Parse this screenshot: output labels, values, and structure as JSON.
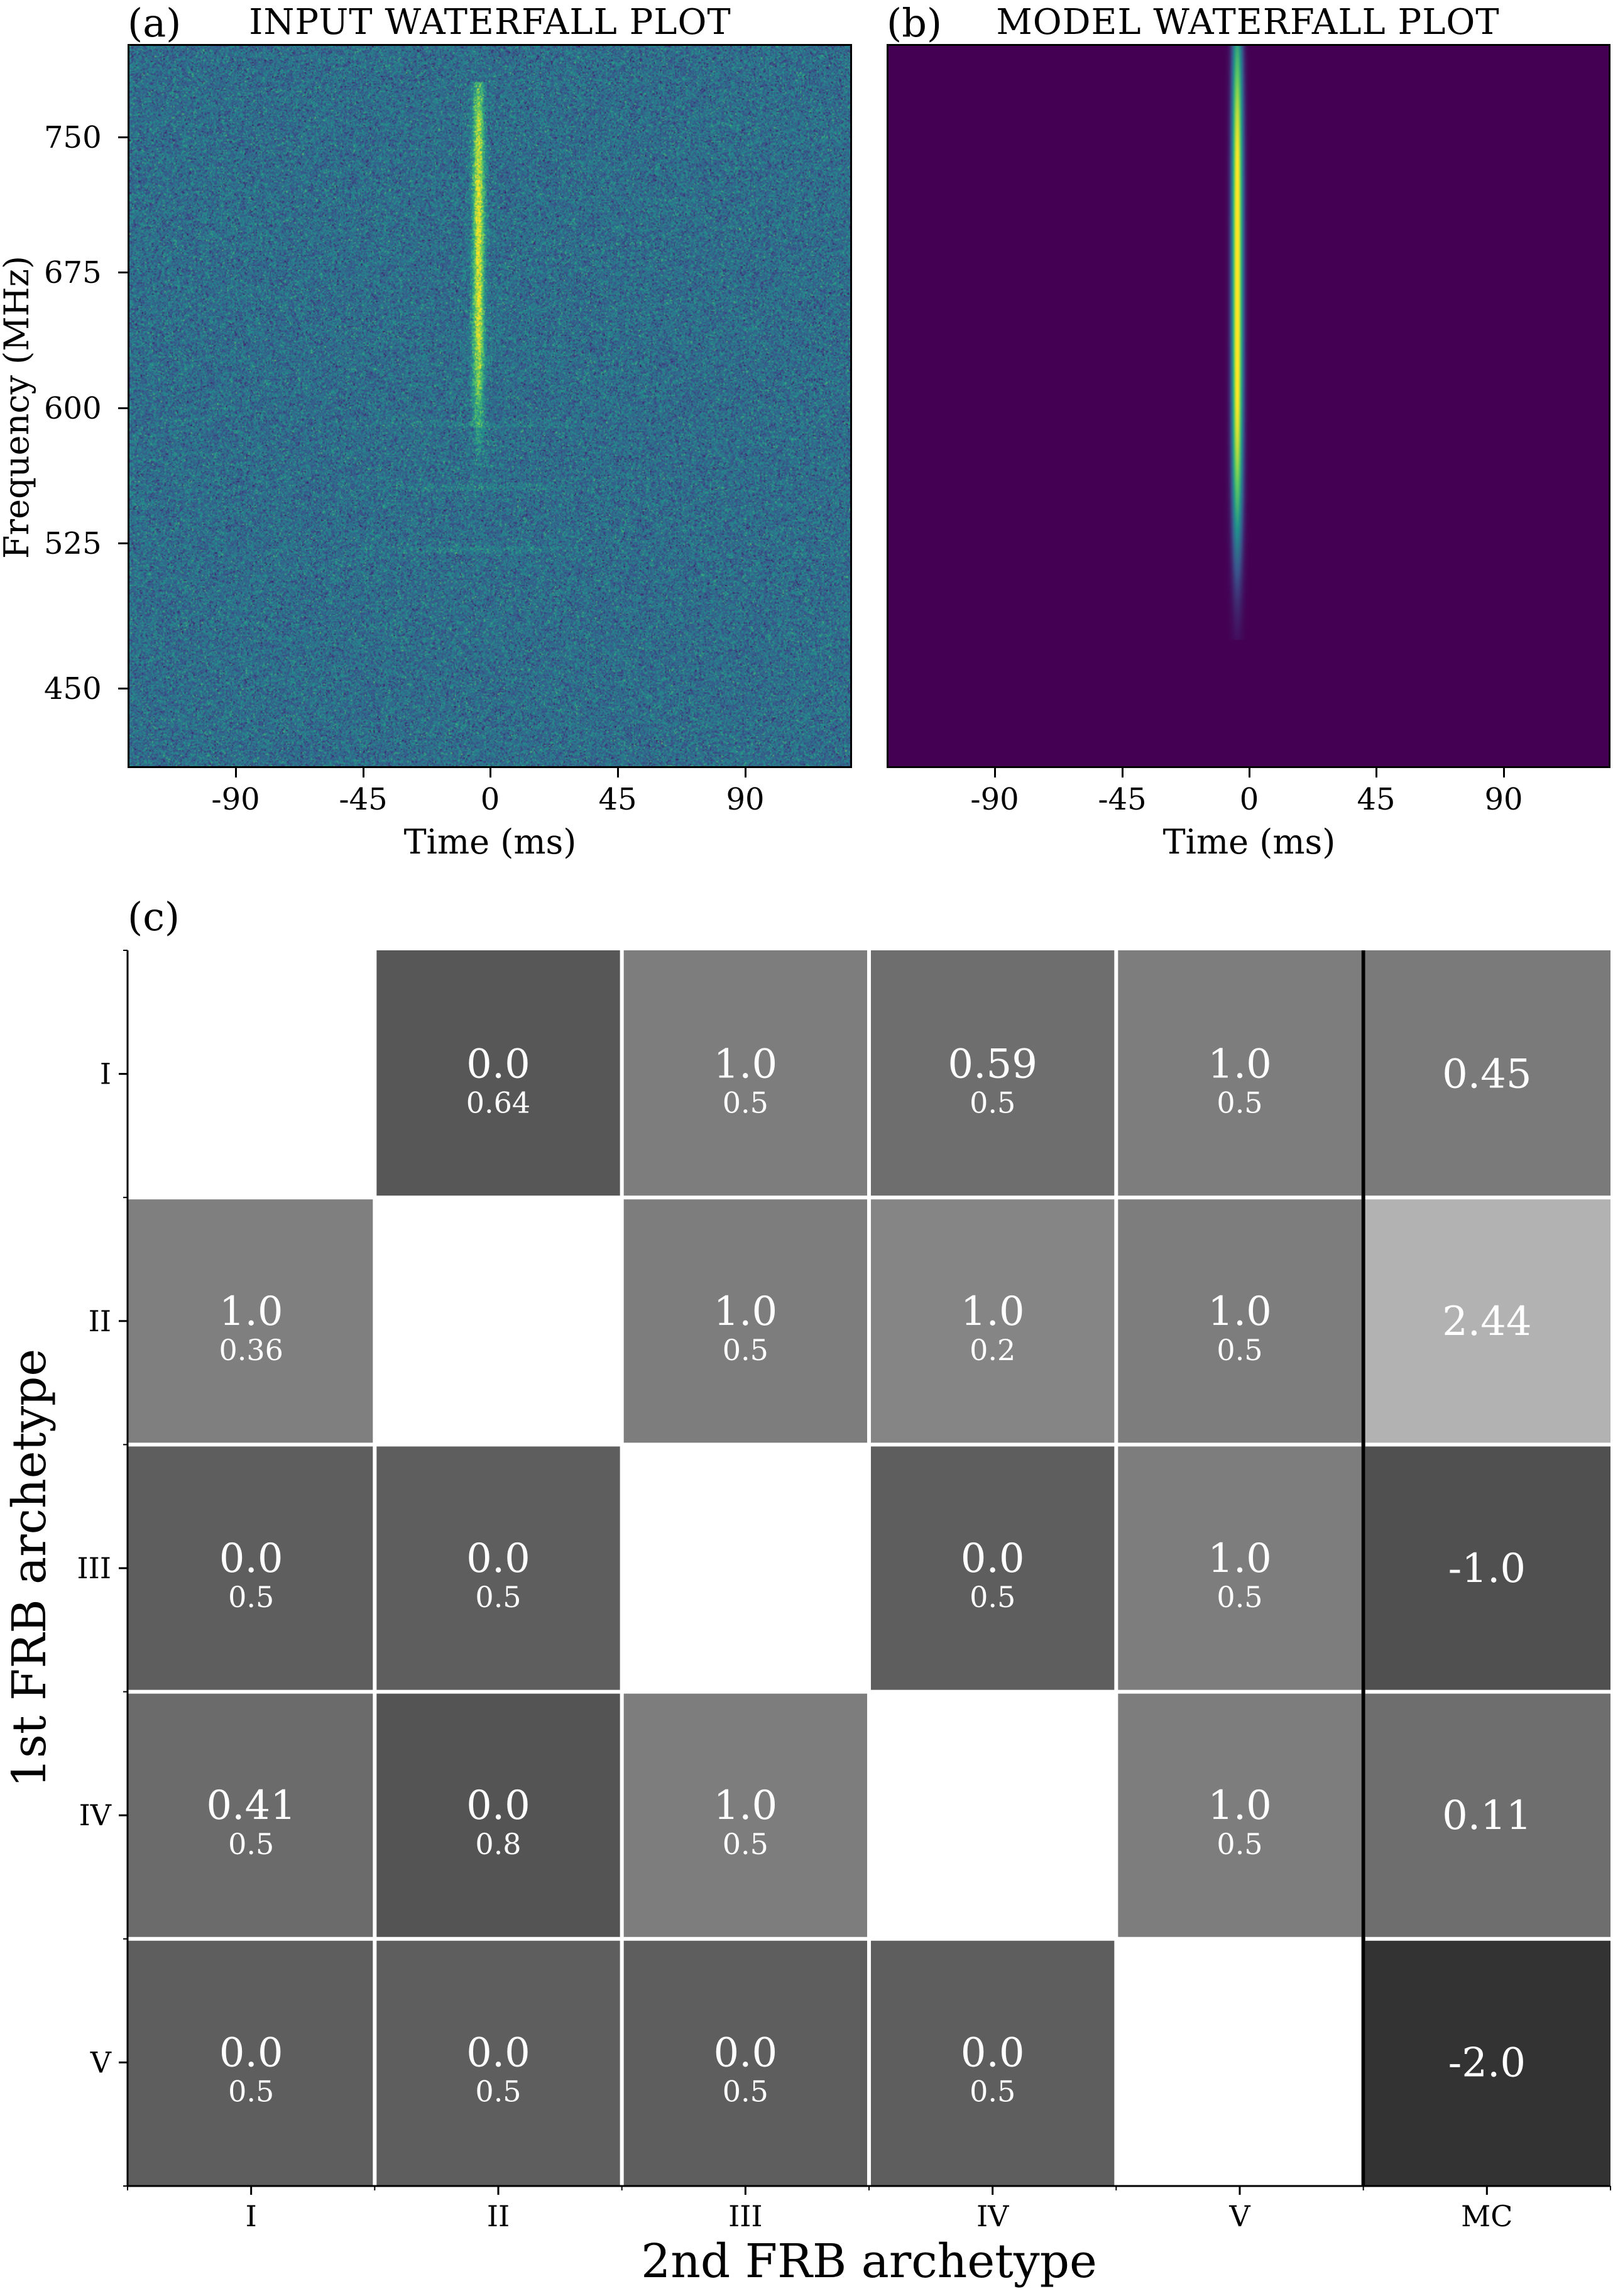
{
  "panels": {
    "a": {
      "letter": "(a)",
      "title": "INPUT WATERFALL PLOT"
    },
    "b": {
      "letter": "(b)",
      "title": "MODEL WATERFALL PLOT"
    },
    "c": {
      "letter": "(c)"
    }
  },
  "waterfall_axes": {
    "xlabel": "Time (ms)",
    "ylabel": "Frequency (MHz)",
    "xticks": [
      "-90",
      "-45",
      "0",
      "45",
      "90"
    ],
    "yticks": [
      "750",
      "675",
      "600",
      "525",
      "450"
    ]
  },
  "colors": {
    "viridis_dark": "#440154",
    "viridis_mid": "#21918c",
    "viridis_bright": "#fde725",
    "grid_lines": "#ffffff",
    "mc_separator": "#000000"
  },
  "chart_data": [
    {
      "type": "heatmap",
      "title": "INPUT WATERFALL PLOT",
      "xlabel": "Time (ms)",
      "ylabel": "Frequency (MHz)",
      "xlim": [
        -128,
        128
      ],
      "ylim": [
        400,
        800
      ],
      "x_ticks": [
        -90,
        -45,
        0,
        45,
        90
      ],
      "y_ticks": [
        450,
        525,
        600,
        675,
        750
      ],
      "colormap": "viridis",
      "description_values": {
        "burst_time_ms": -4,
        "burst_freq_range_mhz": [
          570,
          770
        ]
      }
    },
    {
      "type": "heatmap",
      "title": "MODEL WATERFALL PLOT",
      "xlabel": "Time (ms)",
      "ylabel": "",
      "xlim": [
        -128,
        128
      ],
      "ylim": [
        400,
        800
      ],
      "x_ticks": [
        -90,
        -45,
        0,
        45,
        90
      ],
      "colormap": "viridis",
      "description_values": {
        "burst_time_ms": -4,
        "burst_freq_range_mhz": [
          500,
          800
        ]
      }
    },
    {
      "type": "table",
      "xlabel": "2nd FRB archetype",
      "ylabel": "1st FRB archetype",
      "columns": [
        "I",
        "II",
        "III",
        "IV",
        "V",
        "MC"
      ],
      "rows": [
        "I",
        "II",
        "III",
        "IV",
        "V"
      ],
      "cells": [
        [
          null,
          {
            "top": "0.0",
            "bottom": "0.64",
            "shade": "#575757"
          },
          {
            "top": "1.0",
            "bottom": "0.5",
            "shade": "#7d7d7d"
          },
          {
            "top": "0.59",
            "bottom": "0.5",
            "shade": "#6e6e6e"
          },
          {
            "top": "1.0",
            "bottom": "0.5",
            "shade": "#7d7d7d"
          },
          {
            "top": "0.45",
            "bottom": null,
            "shade": "#7a7a7a"
          }
        ],
        [
          {
            "top": "1.0",
            "bottom": "0.36",
            "shade": "#7f7f7f"
          },
          null,
          {
            "top": "1.0",
            "bottom": "0.5",
            "shade": "#7d7d7d"
          },
          {
            "top": "1.0",
            "bottom": "0.2",
            "shade": "#858585"
          },
          {
            "top": "1.0",
            "bottom": "0.5",
            "shade": "#7d7d7d"
          },
          {
            "top": "2.44",
            "bottom": null,
            "shade": "#b2b2b2"
          }
        ],
        [
          {
            "top": "0.0",
            "bottom": "0.5",
            "shade": "#5e5e5e"
          },
          {
            "top": "0.0",
            "bottom": "0.5",
            "shade": "#5e5e5e"
          },
          null,
          {
            "top": "0.0",
            "bottom": "0.5",
            "shade": "#5e5e5e"
          },
          {
            "top": "1.0",
            "bottom": "0.5",
            "shade": "#7d7d7d"
          },
          {
            "top": "-1.0",
            "bottom": null,
            "shade": "#505050"
          }
        ],
        [
          {
            "top": "0.41",
            "bottom": "0.5",
            "shade": "#6b6b6b"
          },
          {
            "top": "0.0",
            "bottom": "0.8",
            "shade": "#545454"
          },
          {
            "top": "1.0",
            "bottom": "0.5",
            "shade": "#7d7d7d"
          },
          null,
          {
            "top": "1.0",
            "bottom": "0.5",
            "shade": "#7d7d7d"
          },
          {
            "top": "0.11",
            "bottom": null,
            "shade": "#6e6e6e"
          }
        ],
        [
          {
            "top": "0.0",
            "bottom": "0.5",
            "shade": "#5e5e5e"
          },
          {
            "top": "0.0",
            "bottom": "0.5",
            "shade": "#5e5e5e"
          },
          {
            "top": "0.0",
            "bottom": "0.5",
            "shade": "#5e5e5e"
          },
          {
            "top": "0.0",
            "bottom": "0.5",
            "shade": "#5e5e5e"
          },
          null,
          {
            "top": "-2.0",
            "bottom": null,
            "shade": "#333333"
          }
        ]
      ]
    }
  ]
}
